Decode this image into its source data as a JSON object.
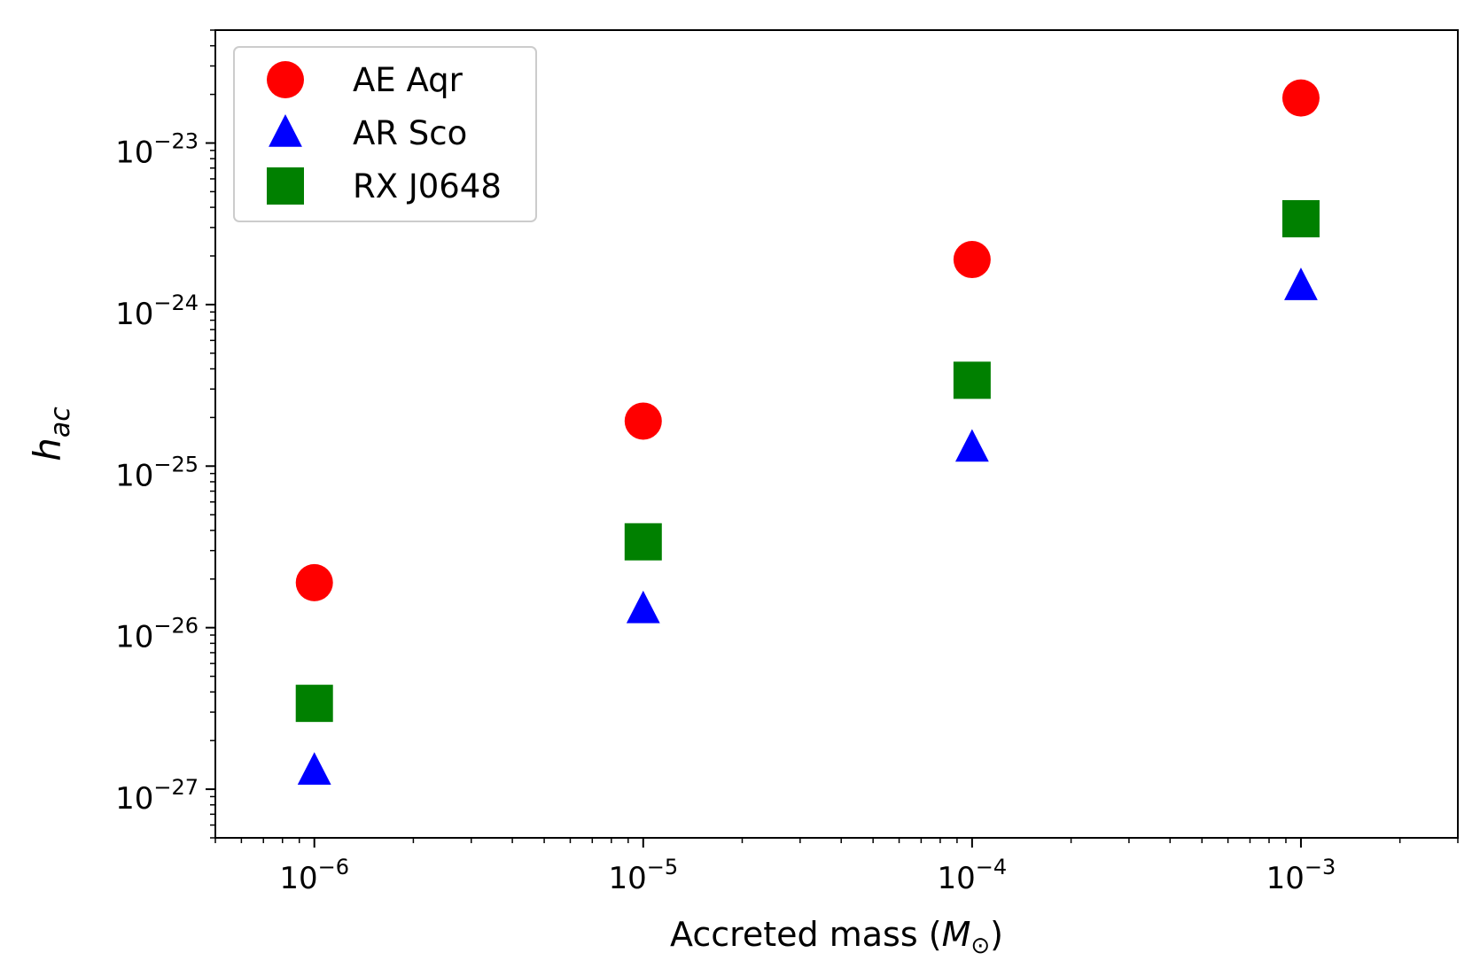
{
  "chart_data": {
    "type": "scatter",
    "x_scale": "log",
    "y_scale": "log",
    "xlabel": {
      "main": "Accreted mass (",
      "italic": "M",
      "sub": "⊙",
      "close": ")"
    },
    "ylabel": {
      "italic": "h",
      "sub": "ac"
    },
    "xlim": [
      5e-07,
      0.003
    ],
    "ylim": [
      5e-28,
      5e-23
    ],
    "x_ticks": [
      {
        "value": 1e-06,
        "base": "10",
        "exp": "−6"
      },
      {
        "value": 1e-05,
        "base": "10",
        "exp": "−5"
      },
      {
        "value": 0.0001,
        "base": "10",
        "exp": "−4"
      },
      {
        "value": 0.001,
        "base": "10",
        "exp": "−3"
      }
    ],
    "y_ticks": [
      {
        "value": 1e-27,
        "base": "10",
        "exp": "−27"
      },
      {
        "value": 1e-26,
        "base": "10",
        "exp": "−26"
      },
      {
        "value": 1e-25,
        "base": "10",
        "exp": "−25"
      },
      {
        "value": 1e-24,
        "base": "10",
        "exp": "−24"
      },
      {
        "value": 1e-23,
        "base": "10",
        "exp": "−23"
      }
    ],
    "legend_position": "top-left",
    "series": [
      {
        "name": "AE Aqr",
        "marker": "circle",
        "color": "#ff0000",
        "x": [
          1e-06,
          1e-05,
          0.0001,
          0.001
        ],
        "y": [
          1.9e-26,
          1.9e-25,
          1.9e-24,
          1.9e-23
        ]
      },
      {
        "name": "AR Sco",
        "marker": "triangle",
        "color": "#0000ff",
        "x": [
          1e-06,
          1e-05,
          0.0001,
          0.001
        ],
        "y": [
          1.3e-27,
          1.3e-26,
          1.3e-25,
          1.3e-24
        ]
      },
      {
        "name": "RX J0648",
        "marker": "square",
        "color": "#008000",
        "x": [
          1e-06,
          1e-05,
          0.0001,
          0.001
        ],
        "y": [
          3.4e-27,
          3.4e-26,
          3.4e-25,
          3.4e-24
        ]
      }
    ]
  }
}
